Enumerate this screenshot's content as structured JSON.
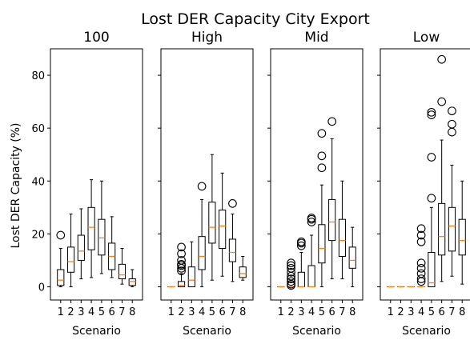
{
  "chart_data": {
    "type": "box",
    "title": "Lost DER Capacity City Export",
    "ylabel": "Lost DER Capacity (%)",
    "xlabel": "Scenario",
    "ylim": [
      -5,
      90
    ],
    "yticks": [
      0,
      20,
      40,
      60,
      80
    ],
    "categories": [
      "1",
      "2",
      "3",
      "4",
      "5",
      "6",
      "7",
      "8"
    ],
    "panels": [
      {
        "title": "100",
        "boxes": [
          {
            "whislo": 0,
            "q1": 0.5,
            "med": 2.5,
            "q3": 6.5,
            "whishi": 14.5,
            "fliers": [
              19.5
            ]
          },
          {
            "whislo": 0,
            "q1": 5.5,
            "med": 9.5,
            "q3": 15,
            "whishi": 27.5,
            "fliers": []
          },
          {
            "whislo": 3,
            "q1": 10,
            "med": 13.5,
            "q3": 19.5,
            "whishi": 29.5,
            "fliers": []
          },
          {
            "whislo": 3.5,
            "q1": 14,
            "med": 22.5,
            "q3": 30,
            "whishi": 40.5,
            "fliers": []
          },
          {
            "whislo": 5,
            "q1": 12,
            "med": 18.5,
            "q3": 25.5,
            "whishi": 40,
            "fliers": []
          },
          {
            "whislo": 3.5,
            "q1": 6.5,
            "med": 11.5,
            "q3": 16.5,
            "whishi": 26.5,
            "fliers": []
          },
          {
            "whislo": 1,
            "q1": 3,
            "med": 4.5,
            "q3": 8.5,
            "whishi": 14.5,
            "fliers": []
          },
          {
            "whislo": 0,
            "q1": 0.5,
            "med": 2,
            "q3": 3,
            "whishi": 6.5,
            "fliers": []
          }
        ]
      },
      {
        "title": "High",
        "boxes": [
          {
            "whislo": 0,
            "q1": 0,
            "med": 0,
            "q3": 0,
            "whishi": 0,
            "fliers": []
          },
          {
            "whislo": 0,
            "q1": 0,
            "med": 0.5,
            "q3": 2,
            "whishi": 5,
            "fliers": [
              6,
              7,
              8,
              8.5,
              10,
              12.5,
              15
            ]
          },
          {
            "whislo": 0,
            "q1": 0,
            "med": 2.5,
            "q3": 7.5,
            "whishi": 17,
            "fliers": []
          },
          {
            "whislo": 0,
            "q1": 6.5,
            "med": 11.5,
            "q3": 19,
            "whishi": 33,
            "fliers": [
              38
            ]
          },
          {
            "whislo": 2.5,
            "q1": 16.5,
            "med": 22.5,
            "q3": 32,
            "whishi": 50,
            "fliers": []
          },
          {
            "whislo": 4,
            "q1": 14.5,
            "med": 23,
            "q3": 29,
            "whishi": 43,
            "fliers": []
          },
          {
            "whislo": 2,
            "q1": 9.5,
            "med": 13,
            "q3": 18,
            "whishi": 27.5,
            "fliers": [
              31.5
            ]
          },
          {
            "whislo": 2.5,
            "q1": 3.5,
            "med": 5,
            "q3": 7.5,
            "whishi": 11.5,
            "fliers": []
          }
        ]
      },
      {
        "title": "Mid",
        "boxes": [
          {
            "whislo": 0,
            "q1": 0,
            "med": 0,
            "q3": 0,
            "whishi": 0,
            "fliers": []
          },
          {
            "whislo": 0,
            "q1": 0,
            "med": 0,
            "q3": 0,
            "whishi": 0,
            "fliers": [
              0.5,
              1,
              2,
              3,
              4,
              5.5,
              7,
              8,
              9
            ]
          },
          {
            "whislo": 0,
            "q1": 0,
            "med": 0,
            "q3": 5.5,
            "whishi": 13,
            "fliers": [
              15.5,
              16.5,
              17
            ]
          },
          {
            "whislo": 0,
            "q1": 0,
            "med": 0,
            "q3": 8,
            "whishi": 19.5,
            "fliers": [
              24.5,
              25.5,
              26
            ]
          },
          {
            "whislo": 0,
            "q1": 9,
            "med": 14.5,
            "q3": 23.5,
            "whishi": 38.5,
            "fliers": [
              45,
              49.5,
              58
            ]
          },
          {
            "whislo": 3,
            "q1": 17.5,
            "med": 24.5,
            "q3": 33,
            "whishi": 56,
            "fliers": [
              62.5
            ]
          },
          {
            "whislo": 3,
            "q1": 11.5,
            "med": 17.5,
            "q3": 25.5,
            "whishi": 40,
            "fliers": []
          },
          {
            "whislo": 0,
            "q1": 7,
            "med": 10,
            "q3": 15,
            "whishi": 22.5,
            "fliers": []
          }
        ]
      },
      {
        "title": "Low",
        "boxes": [
          {
            "whislo": 0,
            "q1": 0,
            "med": 0,
            "q3": 0,
            "whishi": 0,
            "fliers": []
          },
          {
            "whislo": 0,
            "q1": 0,
            "med": 0,
            "q3": 0,
            "whishi": 0,
            "fliers": []
          },
          {
            "whislo": 0,
            "q1": 0,
            "med": 0,
            "q3": 0,
            "whishi": 0,
            "fliers": []
          },
          {
            "whislo": 0,
            "q1": 0,
            "med": 0,
            "q3": 0,
            "whishi": 0,
            "fliers": [
              2,
              3,
              5,
              7,
              9,
              17,
              19.5,
              22
            ]
          },
          {
            "whislo": 0,
            "q1": 0,
            "med": 1.5,
            "q3": 13,
            "whishi": 30,
            "fliers": [
              33.5,
              49,
              65,
              66
            ]
          },
          {
            "whislo": 2,
            "q1": 12,
            "med": 19,
            "q3": 31.5,
            "whishi": 55.5,
            "fliers": [
              70,
              86
            ]
          },
          {
            "whislo": 4,
            "q1": 13.5,
            "med": 23,
            "q3": 30,
            "whishi": 46,
            "fliers": [
              58.5,
              61.5,
              66.5
            ]
          },
          {
            "whislo": 1,
            "q1": 12,
            "med": 17.5,
            "q3": 25.5,
            "whishi": 40,
            "fliers": []
          }
        ]
      }
    ]
  },
  "colors": {
    "axes": "#000000",
    "box": "#000000",
    "median": "#ff7f0e",
    "background": "#ffffff"
  }
}
